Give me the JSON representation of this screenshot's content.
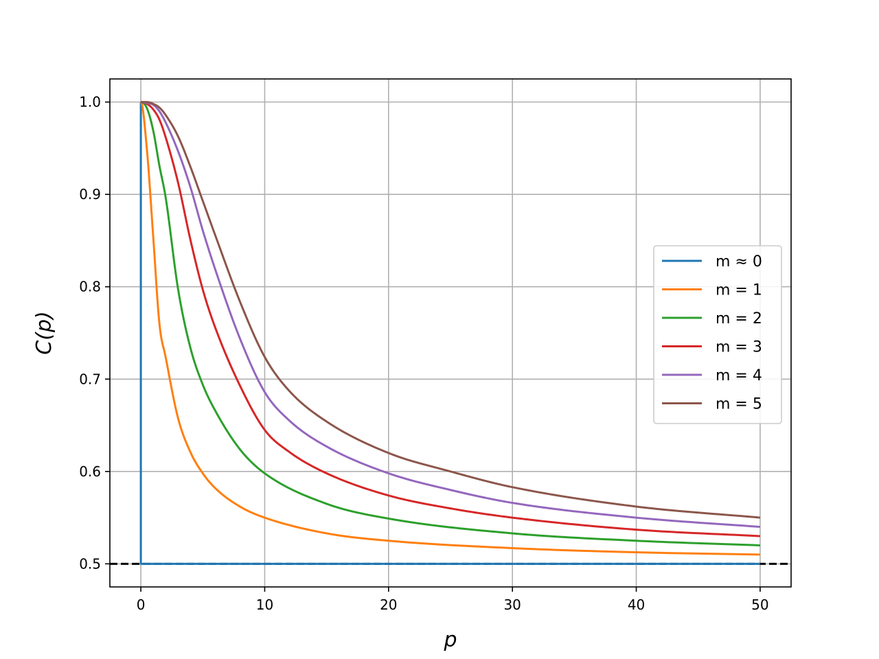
{
  "chart_data": {
    "type": "line",
    "title": "",
    "xlabel": "p",
    "ylabel": "C(p)",
    "xlim": [
      -2.5,
      52.5
    ],
    "ylim": [
      0.475,
      1.025
    ],
    "xticks": [
      0,
      10,
      20,
      30,
      40,
      50
    ],
    "xtick_labels": [
      "0",
      "10",
      "20",
      "30",
      "40",
      "50"
    ],
    "yticks": [
      0.5,
      0.6,
      0.7,
      0.8,
      0.9,
      1.0
    ],
    "ytick_labels": [
      "0.5",
      "0.6",
      "0.7",
      "0.8",
      "0.9",
      "1.0"
    ],
    "grid": true,
    "legend_position": "center-right",
    "reference_line": {
      "y": 0.5,
      "style": "dashed",
      "color": "#000000"
    },
    "series": [
      {
        "name": "m ≈ 0",
        "color": "#1f77b4",
        "m": 0,
        "x": [
          0,
          0,
          50
        ],
        "y": [
          1.0,
          0.5,
          0.5
        ]
      },
      {
        "name": "m = 1",
        "color": "#ff7f0e",
        "m": 1,
        "x": [
          0,
          0.5,
          1,
          1.5,
          2,
          3,
          4,
          5,
          6,
          8,
          10,
          15,
          20,
          30,
          40,
          50
        ],
        "y": [
          1.0,
          0.947,
          0.854,
          0.76,
          0.724,
          0.658,
          0.621,
          0.598,
          0.582,
          0.562,
          0.55,
          0.533,
          0.525,
          0.517,
          0.5125,
          0.51
        ]
      },
      {
        "name": "m = 2",
        "color": "#2ca02c",
        "m": 2,
        "x": [
          0,
          0.5,
          1,
          1.5,
          2,
          3,
          4,
          5,
          6,
          8,
          10,
          15,
          20,
          30,
          40,
          50
        ],
        "y": [
          1.0,
          0.993,
          0.969,
          0.931,
          0.897,
          0.798,
          0.734,
          0.694,
          0.666,
          0.624,
          0.598,
          0.565,
          0.549,
          0.533,
          0.525,
          0.52
        ]
      },
      {
        "name": "m = 3",
        "color": "#d62728",
        "m": 3,
        "x": [
          0,
          0.5,
          1,
          1.5,
          2,
          3,
          4,
          5,
          6,
          8,
          10,
          12,
          15,
          20,
          25,
          30,
          40,
          50
        ],
        "y": [
          1.0,
          0.998,
          0.992,
          0.981,
          0.962,
          0.913,
          0.851,
          0.797,
          0.756,
          0.693,
          0.645,
          0.621,
          0.598,
          0.574,
          0.56,
          0.55,
          0.537,
          0.53
        ]
      },
      {
        "name": "m = 4",
        "color": "#9467bd",
        "m": 4,
        "x": [
          0,
          0.5,
          1,
          1.5,
          2,
          3,
          4,
          5,
          6,
          8,
          10,
          12,
          15,
          20,
          25,
          30,
          40,
          50
        ],
        "y": [
          1.0,
          0.999,
          0.997,
          0.99,
          0.978,
          0.947,
          0.908,
          0.861,
          0.819,
          0.744,
          0.686,
          0.655,
          0.627,
          0.598,
          0.58,
          0.566,
          0.55,
          0.54
        ]
      },
      {
        "name": "m = 5",
        "color": "#8c564b",
        "m": 5,
        "x": [
          0,
          0.5,
          1,
          1.5,
          2,
          3,
          4,
          5,
          6,
          8,
          10,
          12,
          15,
          20,
          25,
          30,
          40,
          50
        ],
        "y": [
          1.0,
          1.0,
          0.998,
          0.994,
          0.986,
          0.963,
          0.93,
          0.893,
          0.856,
          0.784,
          0.724,
          0.687,
          0.654,
          0.62,
          0.6,
          0.583,
          0.562,
          0.55
        ]
      }
    ]
  }
}
